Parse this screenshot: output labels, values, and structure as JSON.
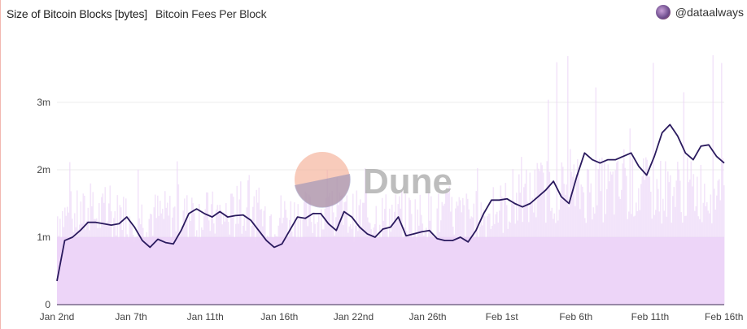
{
  "header": {
    "title": "Size of Bitcoin Blocks [bytes]",
    "subtitle": "Bitcoin Fees Per Block",
    "author": "@dataalways"
  },
  "watermark": "Dune",
  "colors": {
    "line": "#2a1a5e",
    "area": "#e9cff5",
    "axis": "#7a6a8a"
  },
  "chart_data": {
    "type": "line",
    "title": "Size of Bitcoin Blocks [bytes]",
    "xlabel": "",
    "ylabel": "",
    "x_ticks": [
      "Jan 2nd",
      "Jan 7th",
      "Jan 11th",
      "Jan 16th",
      "Jan 22nd",
      "Jan 26th",
      "Feb 1st",
      "Feb 6th",
      "Feb 11th",
      "Feb 16th"
    ],
    "y_ticks": [
      {
        "value": 0,
        "label": "0"
      },
      {
        "value": 1000000,
        "label": "1m"
      },
      {
        "value": 2000000,
        "label": "2m"
      },
      {
        "value": 3000000,
        "label": "3m"
      }
    ],
    "ylim": [
      0,
      3950000
    ],
    "x_range": [
      "Jan 2nd",
      "Feb 16th"
    ],
    "grid": true,
    "series": [
      {
        "type": "line",
        "values_millions": [
          0.35,
          0.95,
          1.0,
          1.1,
          1.22,
          1.22,
          1.2,
          1.18,
          1.2,
          1.3,
          1.15,
          0.95,
          0.85,
          0.97,
          0.92,
          0.9,
          1.1,
          1.35,
          1.42,
          1.35,
          1.3,
          1.38,
          1.3,
          1.32,
          1.33,
          1.25,
          1.1,
          0.95,
          0.85,
          0.9,
          1.1,
          1.3,
          1.28,
          1.35,
          1.35,
          1.2,
          1.1,
          1.38,
          1.3,
          1.15,
          1.05,
          1.0,
          1.12,
          1.15,
          1.3,
          1.02,
          1.05,
          1.08,
          1.1,
          0.98,
          0.95,
          0.95,
          1.0,
          0.93,
          1.1,
          1.35,
          1.55,
          1.55,
          1.57,
          1.5,
          1.45,
          1.5,
          1.6,
          1.7,
          1.83,
          1.6,
          1.5,
          1.9,
          2.25,
          2.15,
          2.1,
          2.15,
          2.15,
          2.2,
          2.25,
          2.05,
          1.92,
          2.2,
          2.55,
          2.67,
          2.5,
          2.25,
          2.15,
          2.35,
          2.37,
          2.2,
          2.1
        ]
      },
      {
        "type": "area",
        "description_level_millions": {
          "jan_typical": 1.6,
          "feb_typical": 2.0,
          "max_spike": 3.7
        }
      }
    ]
  }
}
